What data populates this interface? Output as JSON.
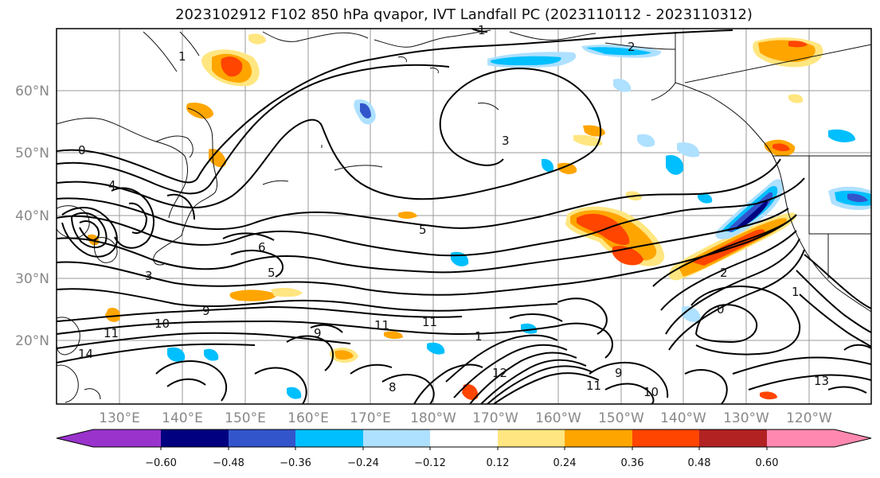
{
  "title": "2023102912 F102 850 hPa qvapor, IVT Landfall PC (2023110112 - 2023110312)",
  "lat_labels": [
    "60°N",
    "50°N",
    "40°N",
    "30°N",
    "20°N"
  ],
  "lon_labels": [
    "130°E",
    "140°E",
    "150°E",
    "160°E",
    "170°E",
    "180°W",
    "170°W",
    "160°W",
    "150°W",
    "140°W",
    "130°W",
    "120°W"
  ],
  "colorbar": {
    "tick_labels": [
      "−0.60",
      "−0.48",
      "−0.36",
      "−0.24",
      "−0.12",
      "0.12",
      "0.24",
      "0.36",
      "0.48",
      "0.60"
    ],
    "colors": [
      "#9933cc",
      "#000080",
      "#3355cc",
      "#00bfff",
      "#aee0ff",
      "#ffffff",
      "#ffe680",
      "#ffa500",
      "#ff4500",
      "#b22222",
      "#ff88b0"
    ]
  },
  "contour_labels": [
    {
      "text": "1"
    },
    {
      "text": "2"
    },
    {
      "text": "3"
    },
    {
      "text": "0"
    },
    {
      "text": "5"
    },
    {
      "text": "6"
    },
    {
      "text": "5"
    },
    {
      "text": "3"
    },
    {
      "text": "9"
    },
    {
      "text": "10"
    },
    {
      "text": "11"
    },
    {
      "text": "14"
    },
    {
      "text": "9"
    },
    {
      "text": "11"
    },
    {
      "text": "12"
    },
    {
      "text": "8"
    },
    {
      "text": "11"
    },
    {
      "text": "10"
    },
    {
      "text": "9"
    },
    {
      "text": "1"
    },
    {
      "text": "0"
    },
    {
      "text": "1"
    },
    {
      "text": "2"
    },
    {
      "text": "13"
    },
    {
      "text": "11"
    },
    {
      "text": "1"
    },
    {
      "text": "4"
    }
  ]
}
